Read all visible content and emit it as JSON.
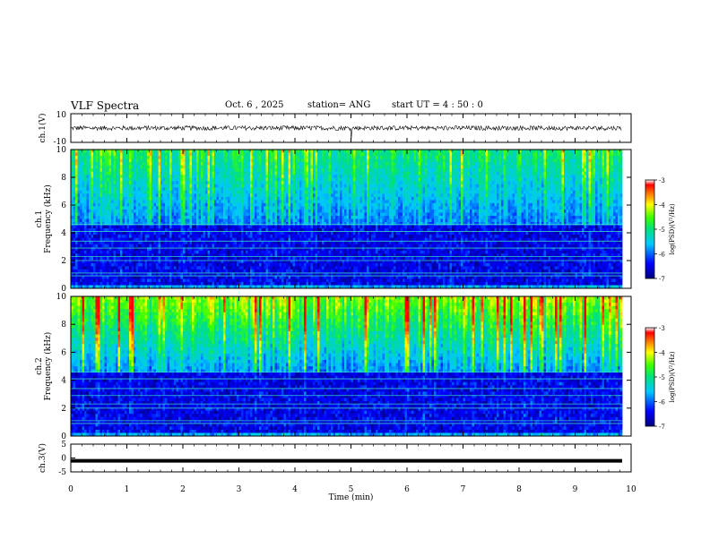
{
  "header": {
    "title": "VLF Spectra",
    "date": "Oct. 6 , 2025",
    "station": "station= ANG",
    "start": "start UT = 4 : 50 : 0"
  },
  "chart_data": [
    {
      "type": "line",
      "panel": "ch1-waveform",
      "ylabel": "ch.1(V)",
      "ylim": [
        -10,
        10
      ],
      "yticks": [
        "10",
        "-10"
      ],
      "xlim": [
        0,
        10
      ]
    },
    {
      "type": "heatmap",
      "panel": "ch1-spectrogram",
      "ylabel": "ch.1",
      "ylabel2": "Frequency (kHz)",
      "ylim": [
        0,
        10
      ],
      "yticks": [
        "0",
        "2",
        "4",
        "6",
        "8",
        "10"
      ],
      "xlim": [
        0,
        10
      ],
      "data_until_min": 9.84,
      "colorbar": {
        "label": "log(PSD)(V²/Hz)",
        "range": [
          -7,
          -3
        ],
        "ticks": [
          "-3",
          "-4",
          "-5",
          "-6",
          "-7"
        ]
      }
    },
    {
      "type": "heatmap",
      "panel": "ch2-spectrogram",
      "ylabel": "ch.2",
      "ylabel2": "Frequency (kHz)",
      "ylim": [
        0,
        10
      ],
      "yticks": [
        "0",
        "2",
        "4",
        "6",
        "8",
        "10"
      ],
      "xlim": [
        0,
        10
      ],
      "data_until_min": 9.84,
      "colorbar": {
        "label": "log(PSD)(V²/Hz)",
        "range": [
          -7,
          -3
        ],
        "ticks": [
          "-3",
          "-4",
          "-5",
          "-6",
          "-7"
        ]
      }
    },
    {
      "type": "line",
      "panel": "ch3-waveform",
      "ylabel": "ch.3(V)",
      "ylim": [
        -5,
        5
      ],
      "yticks": [
        "5",
        "0",
        "-5"
      ],
      "value": -1,
      "xlim": [
        0,
        10
      ],
      "xlabel": "Time (min)",
      "xticks": [
        "0",
        "1",
        "2",
        "3",
        "4",
        "5",
        "6",
        "7",
        "8",
        "9",
        "10"
      ]
    }
  ]
}
